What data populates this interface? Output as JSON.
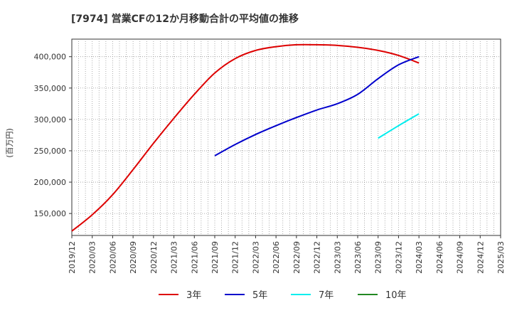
{
  "chart_data": {
    "type": "line",
    "title": "[7974]  営業CFの12か月移動合計の平均値の推移",
    "ylabel": "(百万円)",
    "xlabel": "",
    "ylim": [
      115000,
      428000
    ],
    "xlim": [
      "2019/12",
      "2025/03"
    ],
    "grid": true,
    "legend_position": "bottom",
    "x_tick_labels": [
      "2019/12",
      "2020/03",
      "2020/06",
      "2020/09",
      "2020/12",
      "2021/03",
      "2021/06",
      "2021/09",
      "2021/12",
      "2022/03",
      "2022/06",
      "2022/09",
      "2022/12",
      "2023/03",
      "2023/06",
      "2023/09",
      "2023/12",
      "2024/03",
      "2024/06",
      "2024/09",
      "2024/12",
      "2025/03"
    ],
    "y_ticks": [
      150000,
      200000,
      250000,
      300000,
      350000,
      400000
    ],
    "y_tick_labels": [
      "150,000",
      "200,000",
      "250,000",
      "300,000",
      "350,000",
      "400,000"
    ],
    "series": [
      {
        "name": "3年",
        "color": "#dd0000",
        "x": [
          "2019/12",
          "2020/03",
          "2020/06",
          "2020/09",
          "2020/12",
          "2021/03",
          "2021/06",
          "2021/09",
          "2021/12",
          "2022/03",
          "2022/06",
          "2022/09",
          "2022/12",
          "2023/03",
          "2023/06",
          "2023/09",
          "2023/12",
          "2024/03"
        ],
        "values": [
          122000,
          148000,
          180000,
          220000,
          262000,
          302000,
          340000,
          374000,
          397000,
          410000,
          416000,
          419000,
          419000,
          418000,
          415000,
          410000,
          402000,
          390000
        ]
      },
      {
        "name": "5年",
        "color": "#0000cc",
        "x": [
          "2021/09",
          "2021/12",
          "2022/03",
          "2022/06",
          "2022/09",
          "2022/12",
          "2023/03",
          "2023/06",
          "2023/09",
          "2023/12",
          "2024/03"
        ],
        "values": [
          242000,
          260000,
          276000,
          290000,
          303000,
          315000,
          325000,
          340000,
          365000,
          387000,
          400000
        ]
      },
      {
        "name": "7年",
        "color": "#00eeee",
        "x": [
          "2023/09",
          "2023/12",
          "2024/03"
        ],
        "values": [
          270000,
          290000,
          309000
        ]
      },
      {
        "name": "10年",
        "color": "#228822",
        "x": [],
        "values": []
      }
    ]
  }
}
